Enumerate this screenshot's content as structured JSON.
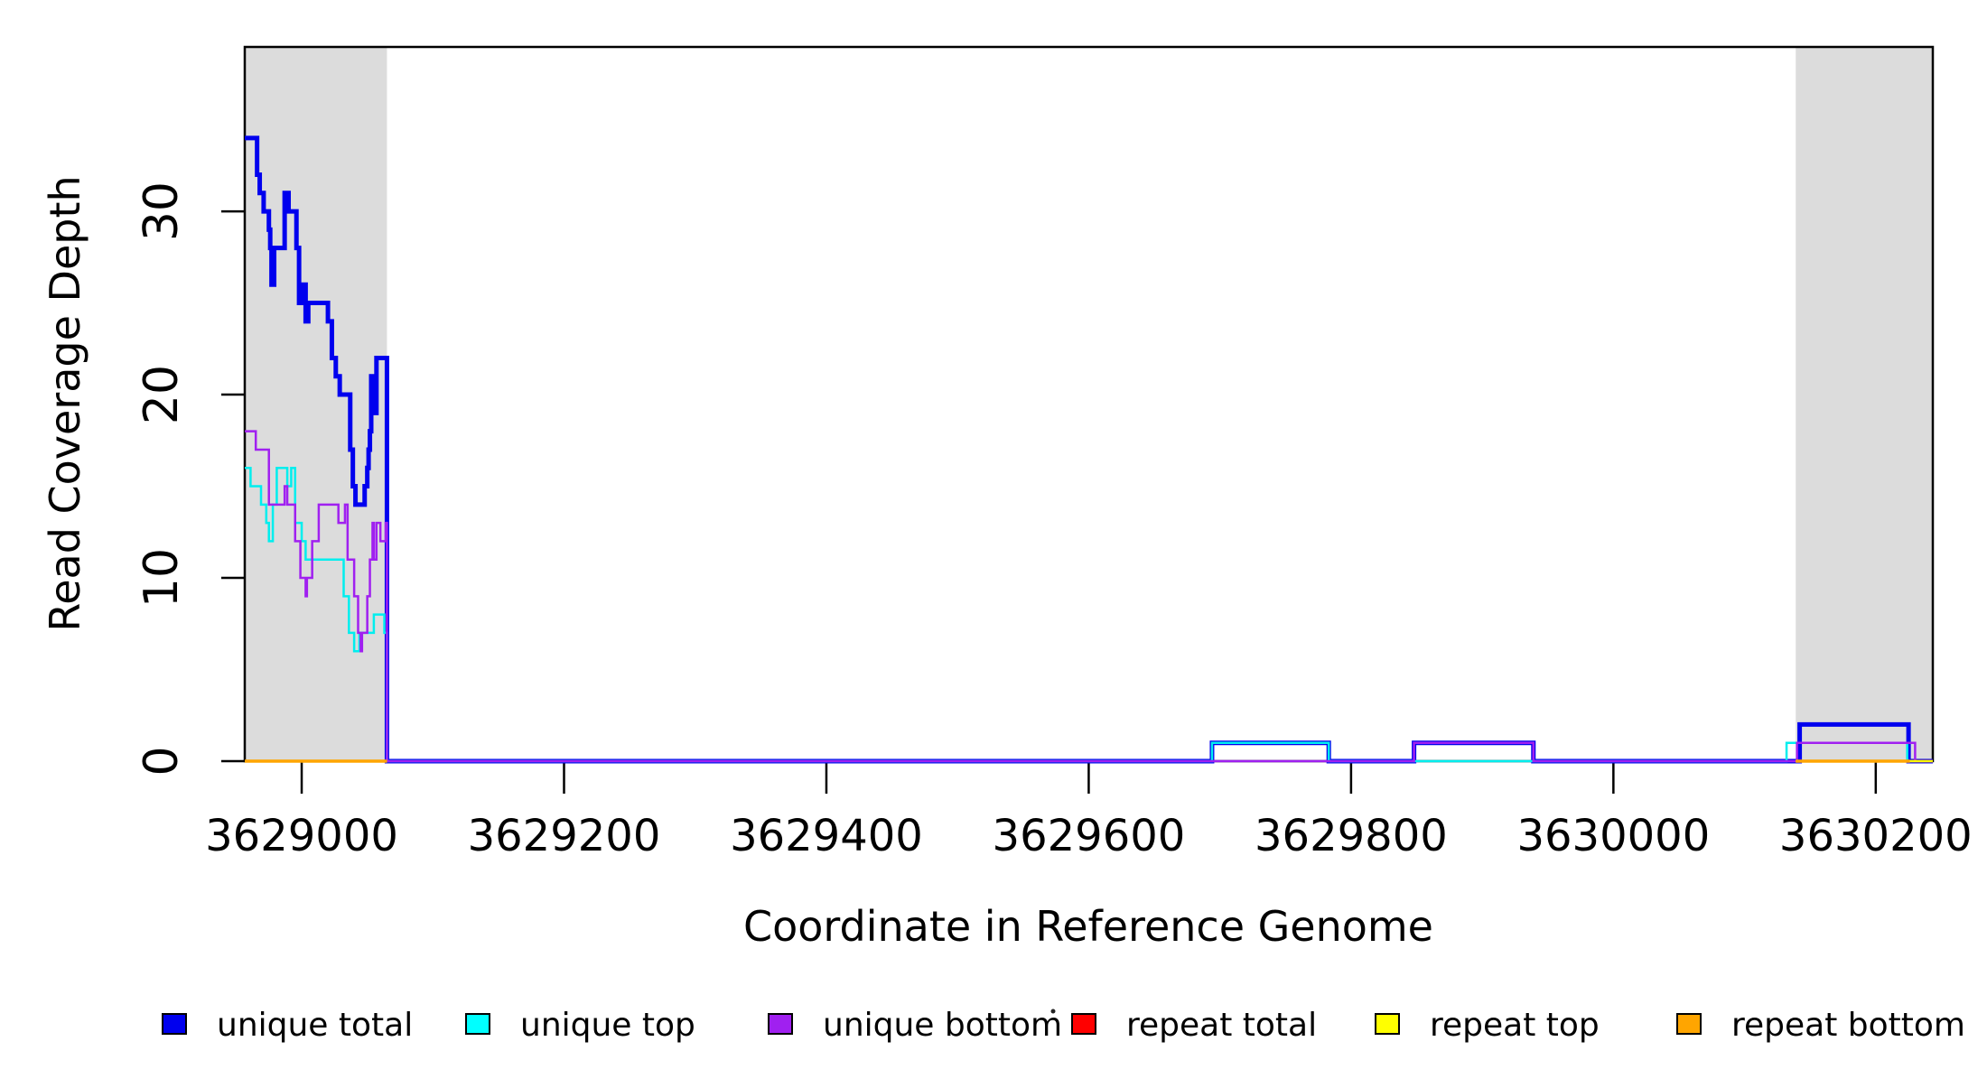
{
  "chart_data": {
    "type": "line",
    "style": "step",
    "title": "",
    "xlabel": "Coordinate in Reference Genome",
    "ylabel": "Read Coverage Depth",
    "x_range": [
      3628956.6,
      3630243.5
    ],
    "y_range": [
      0,
      38.97
    ],
    "x_ticks": [
      3629000,
      3629200,
      3629400,
      3629600,
      3629800,
      3630000,
      3630200
    ],
    "y_ticks": [
      0,
      10,
      20,
      30
    ],
    "grid": false,
    "legend_position": "bottom",
    "x_base": 3629000,
    "repeat_region_color": "#DCDCDC",
    "repeat_regions": [
      [
        3628956.6,
        3629065
      ],
      [
        3630139,
        3630243.5
      ]
    ],
    "series": [
      {
        "name": "unique total",
        "color": "#0000EE",
        "width": 5,
        "segments": [
          [
            [
              -43.4,
              34
            ],
            [
              -34,
              32
            ],
            [
              -32,
              31
            ],
            [
              -29,
              30
            ],
            [
              -25,
              29
            ],
            [
              -24,
              28
            ],
            [
              -23,
              26
            ],
            [
              -21,
              28
            ],
            [
              -13,
              31
            ],
            [
              -10,
              30
            ],
            [
              -4,
              28
            ],
            [
              -2,
              25
            ],
            [
              0,
              26
            ],
            [
              3,
              24
            ],
            [
              5,
              25
            ],
            [
              17,
              25
            ],
            [
              20,
              24
            ],
            [
              23,
              22
            ],
            [
              26,
              21
            ],
            [
              29,
              20
            ],
            [
              35,
              20
            ],
            [
              37,
              17
            ],
            [
              39,
              15
            ],
            [
              41,
              14
            ],
            [
              46,
              14
            ],
            [
              48,
              15
            ],
            [
              50,
              16
            ],
            [
              51,
              17
            ],
            [
              52,
              18
            ],
            [
              53,
              21
            ],
            [
              55,
              19
            ],
            [
              57,
              22
            ],
            [
              64,
              22
            ],
            [
              65,
              0
            ],
            [
              694,
              1
            ],
            [
              783,
              0
            ],
            [
              848,
              1
            ],
            [
              939,
              0
            ],
            [
              1142,
              2
            ],
            [
              1225,
              0
            ],
            [
              1243.5,
              0
            ]
          ]
        ]
      },
      {
        "name": "unique top",
        "color": "#00EEEE",
        "width": 2.5,
        "segments": [
          [
            [
              -43.4,
              16
            ],
            [
              -39,
              15
            ],
            [
              -31,
              14
            ],
            [
              -27,
              13
            ],
            [
              -25,
              12
            ],
            [
              -22,
              14
            ],
            [
              -19,
              16
            ],
            [
              -13,
              16
            ],
            [
              -11,
              15
            ],
            [
              -8,
              16
            ],
            [
              -5,
              13
            ],
            [
              0,
              12
            ],
            [
              3,
              11
            ],
            [
              32,
              9
            ],
            [
              36,
              7
            ],
            [
              40,
              6
            ],
            [
              44,
              7
            ],
            [
              53,
              7
            ],
            [
              55,
              8
            ],
            [
              61,
              8
            ],
            [
              63,
              7
            ],
            [
              65,
              0
            ],
            [
              694,
              1
            ],
            [
              783,
              0
            ],
            [
              1132,
              1
            ],
            [
              1224,
              0
            ],
            [
              1243.5,
              0
            ]
          ]
        ]
      },
      {
        "name": "unique bottom",
        "color": "#A020F0",
        "width": 2.5,
        "segments": [
          [
            [
              -43.4,
              18
            ],
            [
              -35,
              17
            ],
            [
              -25,
              14
            ],
            [
              -13,
              15
            ],
            [
              -11,
              14
            ],
            [
              -5,
              12
            ],
            [
              -1,
              10
            ],
            [
              3,
              9
            ],
            [
              4,
              10
            ],
            [
              8,
              12
            ],
            [
              13,
              14
            ],
            [
              28,
              13
            ],
            [
              33,
              14
            ],
            [
              35,
              11
            ],
            [
              40,
              9
            ],
            [
              43,
              7
            ],
            [
              45,
              6
            ],
            [
              46,
              7
            ],
            [
              50,
              9
            ],
            [
              52,
              11
            ],
            [
              54,
              13
            ],
            [
              55,
              11
            ],
            [
              57,
              13
            ],
            [
              60,
              12
            ],
            [
              64,
              13
            ],
            [
              65,
              0
            ],
            [
              848,
              1
            ],
            [
              939,
              0
            ],
            [
              1140,
              1
            ],
            [
              1230,
              0
            ],
            [
              1243.5,
              0
            ]
          ]
        ]
      },
      {
        "name": "repeat total",
        "color": "#FF0000",
        "width": 2.5,
        "segments": [
          [
            [
              -43.4,
              0
            ],
            [
              65,
              0
            ]
          ],
          [
            [
              1139,
              0
            ],
            [
              1243.5,
              0
            ]
          ]
        ]
      },
      {
        "name": "repeat top",
        "color": "#FFFF00",
        "width": 2.5,
        "segments": [
          [
            [
              -43.4,
              0
            ],
            [
              65,
              0
            ]
          ],
          [
            [
              1139,
              0
            ],
            [
              1243.5,
              0
            ]
          ]
        ]
      },
      {
        "name": "repeat bottom",
        "color": "#FFA500",
        "width": 3.5,
        "segments": [
          [
            [
              -43.4,
              0
            ],
            [
              65,
              0
            ]
          ],
          [
            [
              1139,
              0
            ],
            [
              1226,
              0
            ]
          ]
        ]
      }
    ]
  },
  "legend": {
    "items": [
      {
        "label": "unique total",
        "color": "#0000EE"
      },
      {
        "label": "unique top",
        "color": "#00FFFF"
      },
      {
        "label": "unique bottom",
        "color": "#A020F0"
      },
      {
        "label": "repeat total",
        "color": "#FF0000"
      },
      {
        "label": "repeat top",
        "color": "#FFFF00"
      },
      {
        "label": "repeat bottom",
        "color": "#FFA500"
      }
    ]
  }
}
